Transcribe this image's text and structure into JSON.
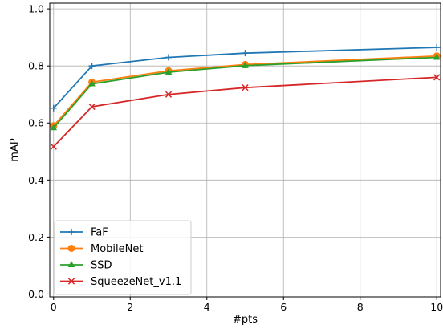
{
  "chart_data": {
    "type": "line",
    "title": "",
    "xlabel": "#pts",
    "ylabel": "mAP",
    "xlim": [
      -0.1,
      10.1
    ],
    "ylim": [
      -0.01,
      1.02
    ],
    "x_ticks": [
      0,
      2,
      4,
      6,
      8,
      10
    ],
    "x_tick_labels": [
      "0",
      "2",
      "4",
      "6",
      "8",
      "10"
    ],
    "y_ticks": [
      0.0,
      0.2,
      0.4,
      0.6,
      0.8,
      1.0
    ],
    "y_tick_labels": [
      "0.0",
      "0.2",
      "0.4",
      "0.6",
      "0.8",
      "1.0"
    ],
    "grid": true,
    "legend_position": "lower-left",
    "x": [
      0,
      1,
      3,
      5,
      10
    ],
    "series": [
      {
        "name": "FaF",
        "color": "#1f77b4",
        "marker": "plus",
        "values": [
          0.652,
          0.8,
          0.83,
          0.845,
          0.865
        ]
      },
      {
        "name": "MobileNet",
        "color": "#ff7f0e",
        "marker": "circle",
        "values": [
          0.59,
          0.743,
          0.783,
          0.805,
          0.835
        ]
      },
      {
        "name": "SSD",
        "color": "#2ca02c",
        "marker": "triangle",
        "values": [
          0.583,
          0.737,
          0.778,
          0.801,
          0.83
        ]
      },
      {
        "name": "SqueezeNet_v1.1",
        "color": "#d62728",
        "marker": "x",
        "values": [
          0.517,
          0.657,
          0.7,
          0.724,
          0.76
        ]
      }
    ]
  }
}
